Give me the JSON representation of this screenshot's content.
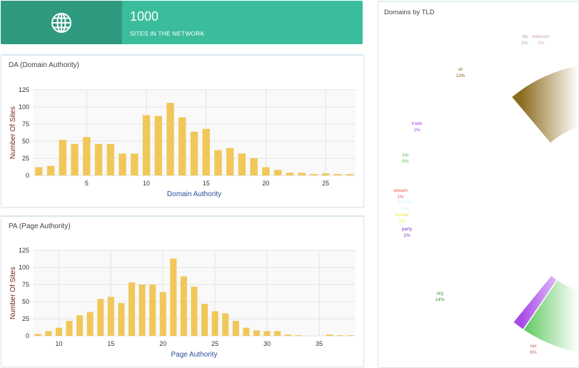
{
  "stat": {
    "value": "1000",
    "label": "SITES IN THE NETWORK",
    "icon": "globe-icon",
    "bg_color": "#3bbd9d",
    "icon_bg_color": "#2f9a80"
  },
  "da_panel": {
    "title": "DA (Domain Authority)"
  },
  "pa_panel": {
    "title": "PA (Page Authority)"
  },
  "tld_panel": {
    "title": "Domains by TLD"
  },
  "chart_data": [
    {
      "type": "bar",
      "title": "DA (Domain Authority)",
      "xlabel": "Domain Authority",
      "ylabel": "Number Of Sites",
      "x": [
        1,
        2,
        3,
        4,
        5,
        6,
        7,
        8,
        9,
        10,
        11,
        12,
        13,
        14,
        15,
        16,
        17,
        18,
        19,
        20,
        21,
        22,
        23,
        24,
        25,
        26,
        27
      ],
      "values": [
        12,
        14,
        52,
        46,
        56,
        46,
        46,
        32,
        32,
        88,
        87,
        106,
        85,
        64,
        68,
        37,
        40,
        32,
        25,
        12,
        8,
        4,
        4,
        2,
        3,
        2,
        2
      ],
      "xticks": [
        5,
        10,
        15,
        20,
        25
      ],
      "yticks": [
        0,
        25,
        50,
        75,
        100,
        125
      ],
      "ylim": [
        0,
        125
      ],
      "xlim": [
        0.5,
        27.5
      ],
      "bar_color": "#f1c75a",
      "grid": true
    },
    {
      "type": "bar",
      "title": "PA (Page Authority)",
      "xlabel": "Page Authority",
      "ylabel": "Number Of Sites",
      "x": [
        8,
        9,
        10,
        11,
        12,
        13,
        14,
        15,
        16,
        17,
        18,
        19,
        20,
        21,
        22,
        23,
        24,
        25,
        26,
        27,
        28,
        29,
        30,
        31,
        32,
        33,
        34,
        35,
        36,
        37,
        38
      ],
      "values": [
        3,
        7,
        12,
        22,
        30,
        35,
        54,
        57,
        48,
        78,
        75,
        75,
        64,
        113,
        87,
        72,
        47,
        36,
        33,
        22,
        12,
        8,
        7,
        7,
        2,
        1,
        0,
        0,
        2,
        1,
        1
      ],
      "xticks": [
        10,
        15,
        20,
        25,
        30,
        35
      ],
      "yticks": [
        0,
        25,
        50,
        75,
        100,
        125
      ],
      "ylim": [
        0,
        125
      ],
      "xlim": [
        7.5,
        38.5
      ],
      "bar_color": "#f1c75a",
      "grid": true
    },
    {
      "type": "pie",
      "title": "Domains by TLD",
      "slices": [
        {
          "label": "uk",
          "value": 13,
          "pct": "13%",
          "color": "#8c6d1f"
        },
        {
          "label": "vip",
          "value": 2,
          "pct": "2%",
          "color": "#8fa3b8"
        },
        {
          "label": "webcam",
          "value": 1,
          "pct": "1%",
          "color": "#b9757a"
        },
        {
          "label": "",
          "value": 1,
          "pct": "1%",
          "color": "#e2bcc0"
        },
        {
          "label": "",
          "value": 1,
          "pct": "",
          "color": "#ececef"
        },
        {
          "label": "net",
          "value": 9,
          "pct": "9%",
          "color": "#b23b3b"
        },
        {
          "label": "org",
          "value": 14,
          "pct": "14%",
          "color": "#3b8b3b"
        },
        {
          "label": "party",
          "value": 1,
          "pct": "1%",
          "color": "#7a2fbf"
        },
        {
          "label": "review",
          "value": 1,
          "pct": "1%",
          "color": "#f5e24a"
        },
        {
          "label": "science",
          "value": 1,
          "pct": "1%",
          "color": "#c9f4f7"
        },
        {
          "label": "stream",
          "value": 1,
          "pct": "1%",
          "color": "#f05454"
        },
        {
          "label": "top",
          "value": 6,
          "pct": "6%",
          "color": "#57c757"
        },
        {
          "label": "trade",
          "value": 1,
          "pct": "1%",
          "color": "#a64ae6"
        }
      ]
    }
  ]
}
